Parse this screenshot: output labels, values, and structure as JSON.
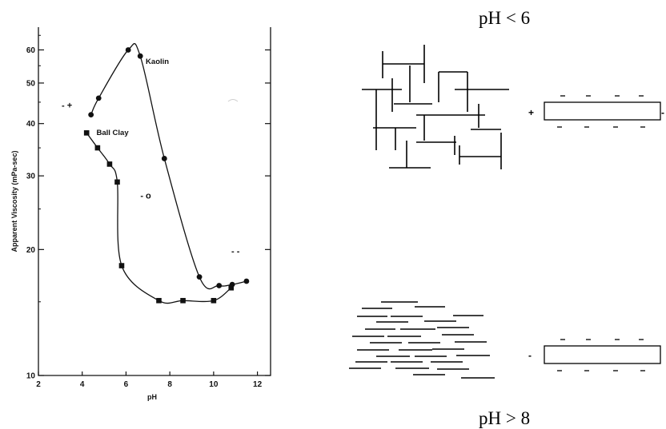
{
  "chart_data": {
    "type": "line",
    "title": "",
    "xlabel": "pH",
    "ylabel": "Apparent Viscosity (mPa-sec)",
    "xlim": [
      2,
      12.6
    ],
    "ylim": [
      10,
      68
    ],
    "y_scale": "log",
    "x_ticks": [
      "2",
      "4",
      "6",
      "8",
      "10",
      "12"
    ],
    "y_ticks": [
      {
        "value": 10,
        "label": "10"
      },
      {
        "value": 20,
        "label": "20"
      },
      {
        "value": 30,
        "label": "30"
      },
      {
        "value": 40,
        "label": "40"
      },
      {
        "value": 50,
        "label": "50"
      },
      {
        "value": 60,
        "label": "60"
      }
    ],
    "grid": false,
    "series": [
      {
        "name": "Kaolin",
        "marker": "circle",
        "points": [
          [
            4.4,
            42
          ],
          [
            4.75,
            46
          ],
          [
            6.1,
            60
          ],
          [
            6.65,
            58
          ],
          [
            7.75,
            33
          ],
          [
            9.35,
            17.2
          ],
          [
            10.25,
            16.4
          ],
          [
            10.85,
            16.5
          ],
          [
            11.5,
            16.8
          ]
        ]
      },
      {
        "name": "Ball Clay",
        "marker": "square",
        "points": [
          [
            4.2,
            38
          ],
          [
            4.7,
            35
          ],
          [
            5.25,
            32
          ],
          [
            5.6,
            29
          ],
          [
            5.8,
            18.3
          ],
          [
            7.5,
            15.1
          ],
          [
            8.6,
            15.1
          ],
          [
            10.0,
            15.1
          ],
          [
            10.8,
            16.2
          ]
        ]
      }
    ],
    "annotations": [
      {
        "text": "- +",
        "x": 3.3,
        "y": 43.5
      },
      {
        "text": "- o",
        "x": 6.9,
        "y": 26.5
      },
      {
        "text": "- -",
        "x": 11.0,
        "y": 19.5
      }
    ]
  },
  "diagram": {
    "top_label": "pH < 6",
    "bottom_label": "pH > 8",
    "top_plate_left_sign": "+",
    "bottom_plate_left_sign": "-",
    "top_plate_right_sign": "-",
    "plate_face_charge": "-"
  }
}
